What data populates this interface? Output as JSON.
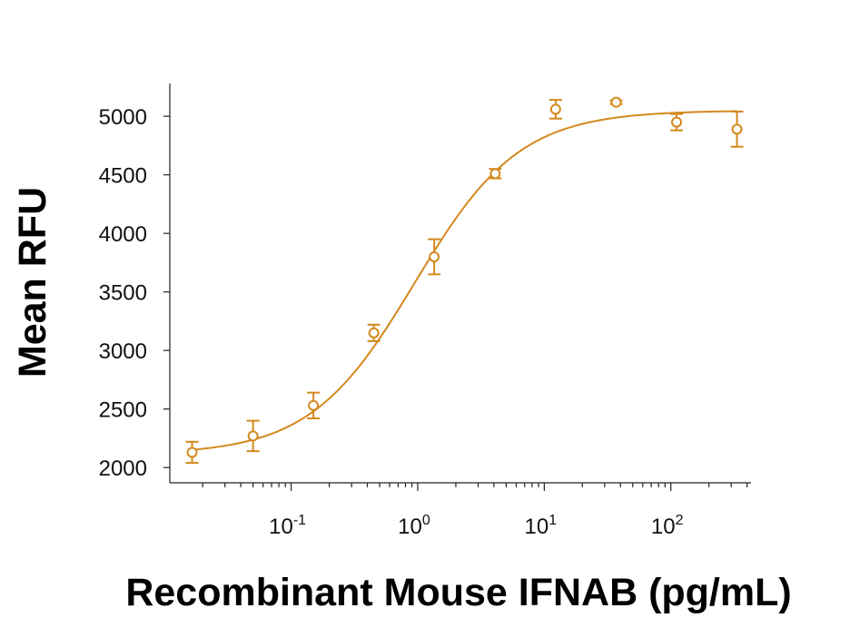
{
  "chart_data": {
    "type": "scatter",
    "title": "",
    "xlabel": "Recombinant Mouse IFNAB (pg/mL)",
    "ylabel": "Mean RFU",
    "xscale": "log",
    "xlim": [
      0.011,
      430
    ],
    "ylim": [
      1870,
      5280
    ],
    "grid": false,
    "legend": "none",
    "color": "#d4891e",
    "x_ticks": [
      {
        "base": "10",
        "exp": "-1",
        "value": 0.1
      },
      {
        "base": "10",
        "exp": "0",
        "value": 1
      },
      {
        "base": "10",
        "exp": "1",
        "value": 10
      },
      {
        "base": "10",
        "exp": "2",
        "value": 100
      }
    ],
    "y_ticks": [
      2000,
      2500,
      3000,
      3500,
      4000,
      4500,
      5000
    ],
    "series": [
      {
        "points": [
          {
            "x": 0.0165,
            "y": 2130,
            "err": 90
          },
          {
            "x": 0.05,
            "y": 2270,
            "err": 130
          },
          {
            "x": 0.15,
            "y": 2530,
            "err": 110
          },
          {
            "x": 0.45,
            "y": 3150,
            "err": 70
          },
          {
            "x": 1.35,
            "y": 3800,
            "err": 150
          },
          {
            "x": 4.1,
            "y": 4510,
            "err": 40
          },
          {
            "x": 12.3,
            "y": 5060,
            "err": 80
          },
          {
            "x": 37,
            "y": 5120,
            "err": 15
          },
          {
            "x": 111,
            "y": 4950,
            "err": 70
          },
          {
            "x": 333,
            "y": 4890,
            "err": 150
          }
        ],
        "fit": {
          "model": "4PL",
          "bottom": 2110,
          "top": 5050,
          "ec50": 0.95,
          "hill": 1.05
        }
      }
    ]
  }
}
